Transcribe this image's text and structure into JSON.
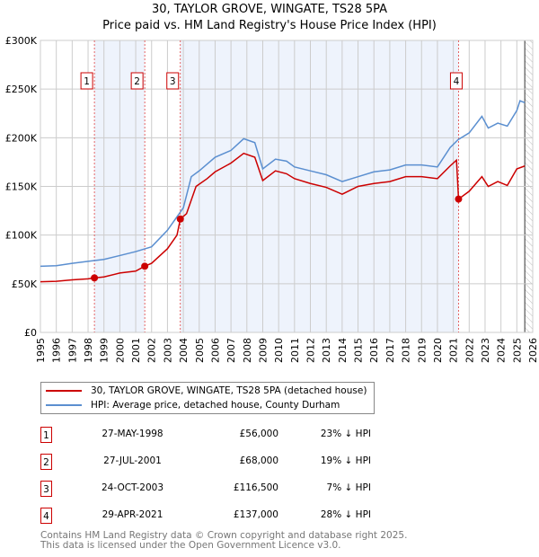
{
  "title": "30, TAYLOR GROVE, WINGATE, TS28 5PA",
  "subtitle": "Price paid vs. HM Land Registry's House Price Index (HPI)",
  "chart_data": {
    "type": "line",
    "ylim": [
      0,
      300000
    ],
    "xlim": [
      1995,
      2026
    ],
    "yticks": [
      {
        "v": 0,
        "label": "£0"
      },
      {
        "v": 50000,
        "label": "£50K"
      },
      {
        "v": 100000,
        "label": "£100K"
      },
      {
        "v": 150000,
        "label": "£150K"
      },
      {
        "v": 200000,
        "label": "£200K"
      },
      {
        "v": 250000,
        "label": "£250K"
      },
      {
        "v": 300000,
        "label": "£300K"
      }
    ],
    "xticks": [
      "1995",
      "1996",
      "1997",
      "1998",
      "1999",
      "2000",
      "2001",
      "2002",
      "2003",
      "2004",
      "2005",
      "2006",
      "2007",
      "2008",
      "2009",
      "2010",
      "2011",
      "2012",
      "2013",
      "2014",
      "2015",
      "2016",
      "2017",
      "2018",
      "2019",
      "2020",
      "2021",
      "2022",
      "2023",
      "2024",
      "2025",
      "2026"
    ],
    "shaded": [
      [
        1998.4,
        2001.57
      ],
      [
        2003.81,
        2021.33
      ]
    ],
    "hatched_from": 2025.5,
    "series": [
      {
        "name": "30, TAYLOR GROVE, WINGATE, TS28 5PA (detached house)",
        "color": "#cc0000",
        "points": [
          [
            1995,
            52000
          ],
          [
            1996,
            52500
          ],
          [
            1997,
            54000
          ],
          [
            1998,
            55000
          ],
          [
            1998.4,
            56000
          ],
          [
            1999,
            57000
          ],
          [
            2000,
            61000
          ],
          [
            2001,
            63000
          ],
          [
            2001.57,
            68000
          ],
          [
            2002,
            71000
          ],
          [
            2003,
            86000
          ],
          [
            2003.6,
            100000
          ],
          [
            2003.81,
            116500
          ],
          [
            2004.2,
            122000
          ],
          [
            2004.8,
            150000
          ],
          [
            2005.5,
            158000
          ],
          [
            2006,
            165000
          ],
          [
            2007,
            174000
          ],
          [
            2007.8,
            184000
          ],
          [
            2008.5,
            180000
          ],
          [
            2009,
            156000
          ],
          [
            2009.8,
            166000
          ],
          [
            2010.5,
            163000
          ],
          [
            2011,
            158000
          ],
          [
            2012,
            153000
          ],
          [
            2013,
            149000
          ],
          [
            2014,
            142000
          ],
          [
            2015,
            150000
          ],
          [
            2016,
            153000
          ],
          [
            2017,
            155000
          ],
          [
            2018,
            160000
          ],
          [
            2019,
            160000
          ],
          [
            2020,
            158000
          ],
          [
            2020.8,
            171000
          ],
          [
            2021.2,
            177000
          ],
          [
            2021.33,
            137000
          ],
          [
            2022,
            145000
          ],
          [
            2022.8,
            160000
          ],
          [
            2023.2,
            150000
          ],
          [
            2023.8,
            155000
          ],
          [
            2024.4,
            151000
          ],
          [
            2025,
            168000
          ],
          [
            2025.5,
            171000
          ]
        ]
      },
      {
        "name": "HPI: Average price, detached house, County Durham",
        "color": "#5b8fd0",
        "points": [
          [
            1995,
            68000
          ],
          [
            1996,
            68500
          ],
          [
            1997,
            71000
          ],
          [
            1998,
            73000
          ],
          [
            1999,
            75000
          ],
          [
            2000,
            79000
          ],
          [
            2001,
            83000
          ],
          [
            2002,
            88000
          ],
          [
            2003,
            105000
          ],
          [
            2004,
            128000
          ],
          [
            2004.5,
            160000
          ],
          [
            2005,
            166000
          ],
          [
            2006,
            180000
          ],
          [
            2007,
            187000
          ],
          [
            2007.8,
            199000
          ],
          [
            2008.5,
            195000
          ],
          [
            2009,
            168000
          ],
          [
            2009.8,
            178000
          ],
          [
            2010.5,
            176000
          ],
          [
            2011,
            170000
          ],
          [
            2012,
            166000
          ],
          [
            2013,
            162000
          ],
          [
            2014,
            155000
          ],
          [
            2015,
            160000
          ],
          [
            2016,
            165000
          ],
          [
            2017,
            167000
          ],
          [
            2018,
            172000
          ],
          [
            2019,
            172000
          ],
          [
            2020,
            170000
          ],
          [
            2020.8,
            190000
          ],
          [
            2021.3,
            198000
          ],
          [
            2022,
            205000
          ],
          [
            2022.8,
            222000
          ],
          [
            2023.2,
            210000
          ],
          [
            2023.8,
            215000
          ],
          [
            2024.4,
            212000
          ],
          [
            2025,
            228000
          ],
          [
            2025.2,
            238000
          ],
          [
            2025.5,
            236000
          ]
        ]
      }
    ],
    "sales": [
      {
        "n": "1",
        "x": 1998.4,
        "y": 56000,
        "date": "27-MAY-1998",
        "price": "£56,000",
        "hpi": "23% ↓ HPI"
      },
      {
        "n": "2",
        "x": 2001.57,
        "y": 68000,
        "date": "27-JUL-2001",
        "price": "£68,000",
        "hpi": "19% ↓ HPI"
      },
      {
        "n": "3",
        "x": 2003.81,
        "y": 116500,
        "date": "24-OCT-2003",
        "price": "£116,500",
        "hpi": "7% ↓ HPI"
      },
      {
        "n": "4",
        "x": 2021.33,
        "y": 137000,
        "date": "29-APR-2021",
        "price": "£137,000",
        "hpi": "28% ↓ HPI"
      }
    ]
  },
  "footer": [
    "Contains HM Land Registry data © Crown copyright and database right 2025.",
    "This data is licensed under the Open Government Licence v3.0."
  ]
}
